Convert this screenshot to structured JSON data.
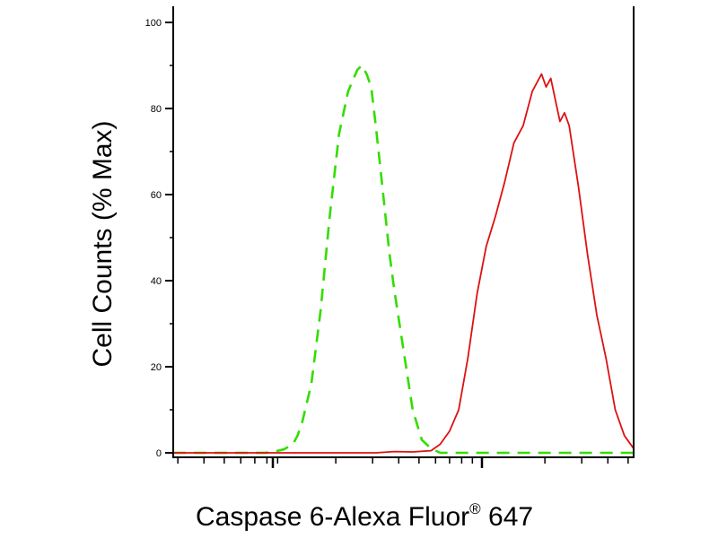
{
  "chart_data": {
    "type": "line",
    "xlabel": "Caspase 6-Alexa Fluor",
    "xlabel_superscript": "®",
    "xlabel_suffix": " 647",
    "ylabel": "Cell Counts (% Max)",
    "ylim": [
      0,
      100
    ],
    "yticks": [
      "0",
      "20",
      "40",
      "60",
      "80",
      "100"
    ],
    "xlim": [
      0,
      100
    ],
    "series": [
      {
        "style": "dashed",
        "color": "#33dd00",
        "x": [
          0,
          10,
          20,
          22,
          24,
          26,
          27,
          28,
          30,
          32,
          34,
          36,
          38,
          40,
          41,
          42,
          43,
          44,
          45,
          46,
          47,
          48,
          50,
          52,
          54,
          56,
          58,
          60,
          62,
          64,
          66,
          68,
          70,
          80,
          90,
          100
        ],
        "y": [
          0,
          0,
          0,
          0.3,
          0.8,
          2,
          4,
          7,
          16,
          33,
          55,
          74,
          84,
          89,
          90,
          88,
          85,
          76,
          66,
          56,
          46,
          38,
          24,
          10,
          3,
          1,
          0,
          0,
          0,
          0,
          0,
          0,
          0,
          0,
          0,
          0
        ]
      },
      {
        "style": "solid",
        "color": "#dd1111",
        "x": [
          0,
          20,
          44,
          48,
          52,
          56,
          58,
          60,
          62,
          64,
          66,
          68,
          70,
          72,
          74,
          76,
          78,
          80,
          81,
          82,
          83,
          84,
          85,
          86,
          88,
          90,
          92,
          94,
          96,
          98,
          100
        ],
        "y": [
          0,
          0,
          0,
          0.3,
          0.2,
          0.5,
          2,
          5,
          10,
          22,
          37,
          48,
          55,
          63,
          72,
          76,
          84,
          88,
          85,
          87,
          82,
          77,
          79,
          76,
          62,
          46,
          32,
          22,
          10,
          4,
          1
        ]
      }
    ]
  }
}
